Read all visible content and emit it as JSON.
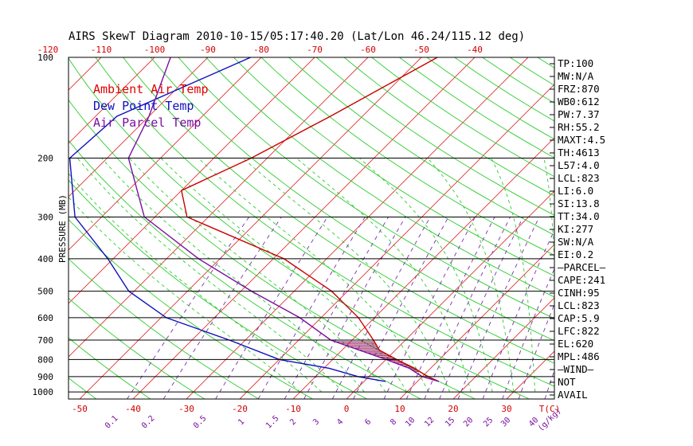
{
  "chart_data": {
    "type": "skewt",
    "title": "AIRS SkewT Diagram 2010-10-15/05:17:40.20 (Lat/Lon 46.24/115.12 deg)",
    "ylabel": "PRESSURE (MB)",
    "pressure_ticks": [
      "100",
      "200",
      "300",
      "400",
      "500",
      "600",
      "700",
      "800",
      "900",
      "1000"
    ],
    "pressure_levels": [
      100,
      200,
      300,
      400,
      500,
      600,
      700,
      800,
      900,
      1000
    ],
    "top_temp_ticks": [
      "-120",
      "-110",
      "-100",
      "-90",
      "-80",
      "-70",
      "-60",
      "-50",
      "-40"
    ],
    "bottom_temp_ticks": [
      "-50",
      "-40",
      "-30",
      "-20",
      "-10",
      "0",
      "10",
      "20",
      "30"
    ],
    "bottom_temp_unit": "T(C)",
    "mixing_ratio_ticks": [
      "0.1",
      "0.2",
      "0.5",
      "1",
      "1.5",
      "2",
      "3",
      "4",
      "6",
      "8",
      "10",
      "12",
      "15",
      "20",
      "25",
      "30",
      "40"
    ],
    "mixing_ratio_unit": "(g/kg)",
    "legend": [
      {
        "label": "Ambient Air Temp",
        "color": "#e00000"
      },
      {
        "label": "Dew Point Temp",
        "color": "#1010c0"
      },
      {
        "label": "Air Parcel Temp",
        "color": "#7a0fa0"
      }
    ],
    "series": [
      {
        "name": "Ambient Air Temp",
        "color": "#cc0000",
        "points": [
          [
            100,
            -47
          ],
          [
            150,
            -56
          ],
          [
            200,
            -63
          ],
          [
            250,
            -70
          ],
          [
            300,
            -64
          ],
          [
            400,
            -38
          ],
          [
            500,
            -23
          ],
          [
            600,
            -13
          ],
          [
            700,
            -6
          ],
          [
            750,
            -3
          ],
          [
            800,
            2
          ],
          [
            850,
            7
          ],
          [
            900,
            11
          ],
          [
            930,
            14
          ]
        ]
      },
      {
        "name": "Dew Point Temp",
        "color": "#1010c0",
        "points": [
          [
            100,
            -82
          ],
          [
            150,
            -96
          ],
          [
            200,
            -97
          ],
          [
            300,
            -85
          ],
          [
            400,
            -71
          ],
          [
            500,
            -61
          ],
          [
            600,
            -49
          ],
          [
            700,
            -33
          ],
          [
            800,
            -20
          ],
          [
            850,
            -9
          ],
          [
            900,
            -2
          ],
          [
            930,
            4
          ]
        ]
      },
      {
        "name": "Air Parcel Temp",
        "color": "#7a0fa0",
        "points": [
          [
            100,
            -97
          ],
          [
            150,
            -90
          ],
          [
            200,
            -86
          ],
          [
            300,
            -72
          ],
          [
            400,
            -54
          ],
          [
            500,
            -38
          ],
          [
            600,
            -24
          ],
          [
            700,
            -14
          ],
          [
            800,
            0
          ],
          [
            850,
            6
          ],
          [
            900,
            10
          ],
          [
            930,
            14
          ]
        ]
      }
    ],
    "indices": [
      "TP:100",
      "MW:N/A",
      "FRZ:870",
      "WB0:612",
      "PW:7.37",
      "RH:55.2",
      "MAXT:4.5",
      "TH:4613",
      "L57:4.0",
      "LCL:823",
      "LI:6.0",
      "SI:13.8",
      "TT:34.0",
      "KI:277",
      "SW:N/A",
      "EI:0.2",
      "—PARCEL—",
      "CAPE:241",
      "CINH:95",
      "LCL:823",
      "CAP:5.9",
      "LFC:822",
      "EL:620",
      "MPL:486",
      "—WIND—",
      "NOT",
      "AVAIL"
    ]
  }
}
